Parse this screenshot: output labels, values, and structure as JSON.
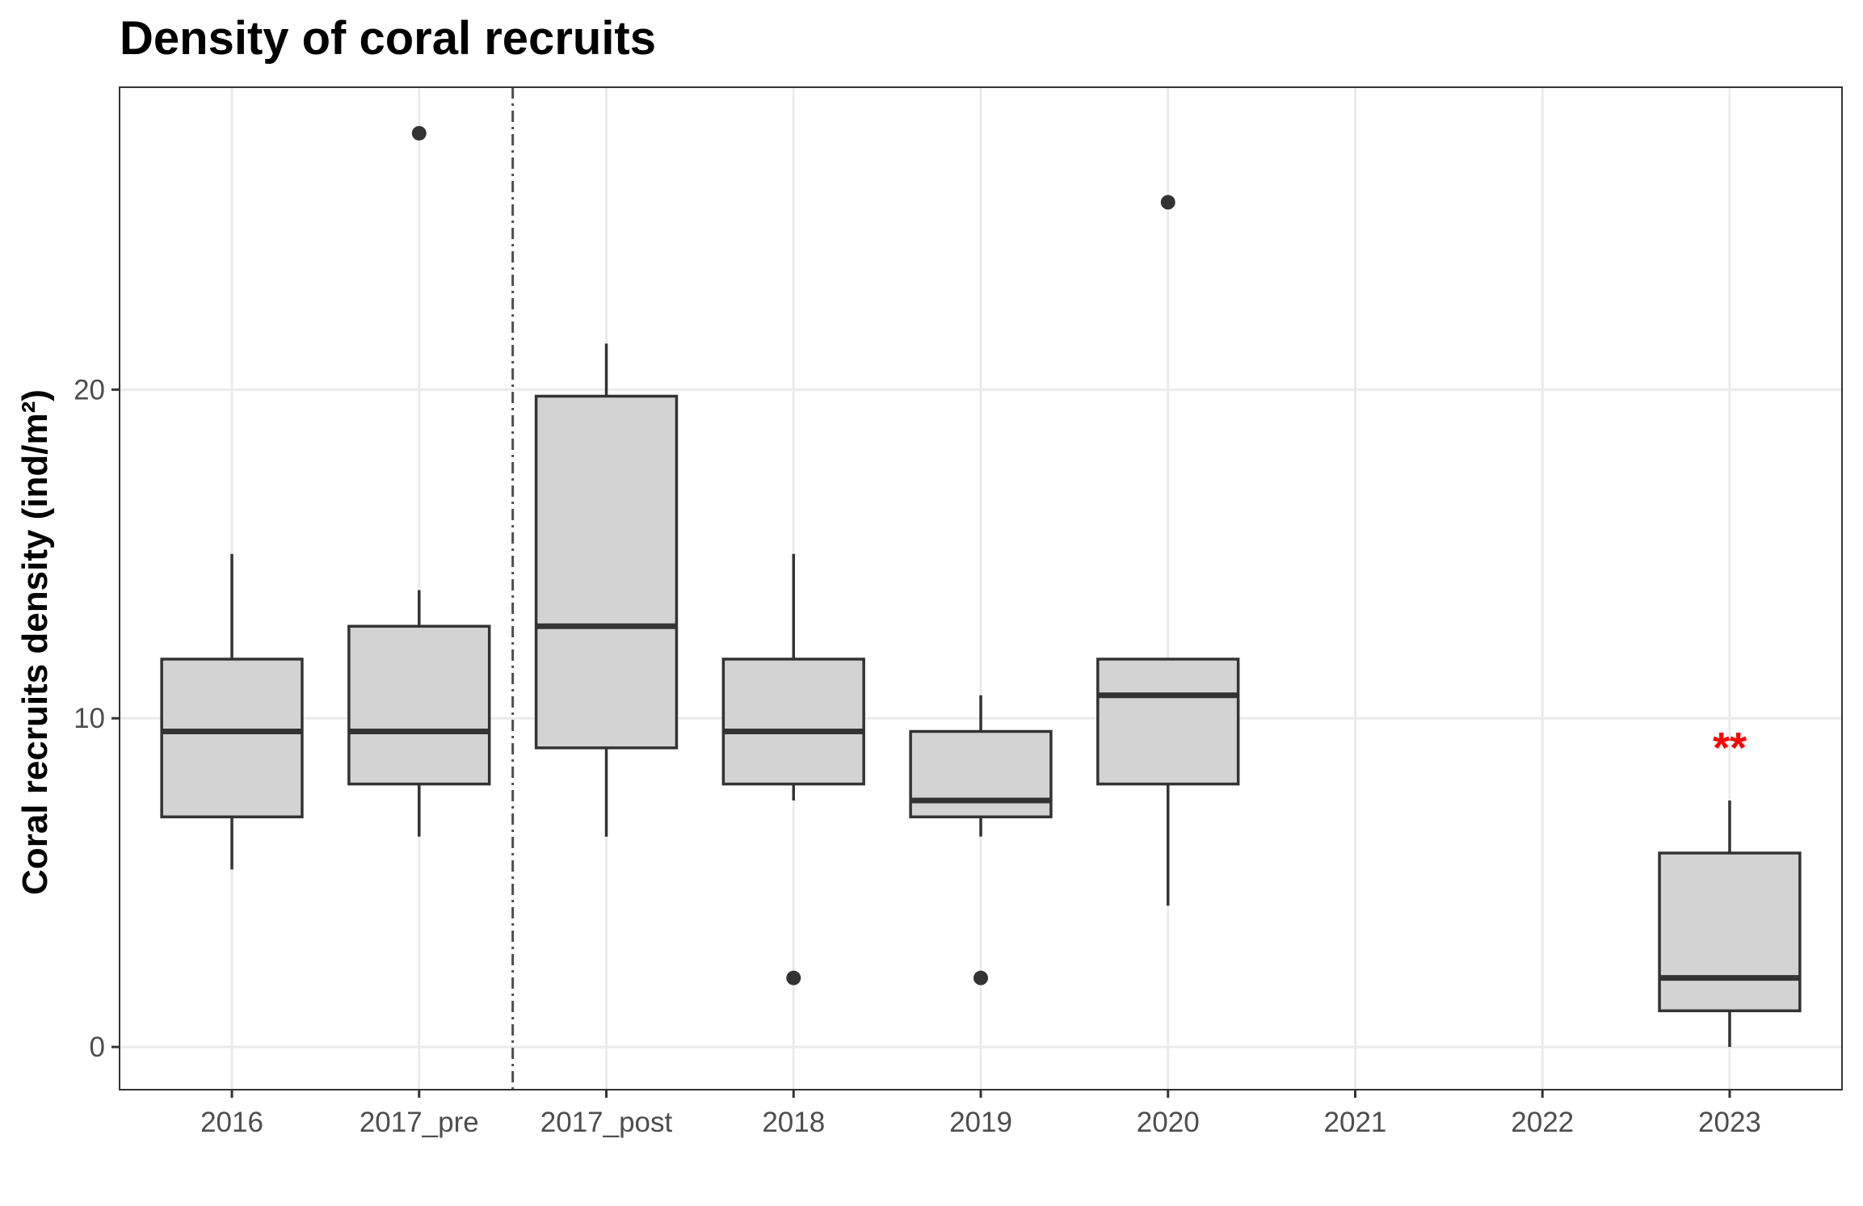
{
  "chart_data": {
    "type": "boxplot",
    "title": "Density of coral recruits",
    "xlabel": "",
    "ylabel": "Coral recruits density (ind/m²)",
    "ylim": [
      -1.3,
      29.2
    ],
    "yticks": [
      0,
      10,
      20
    ],
    "grid": true,
    "categories": [
      "2016",
      "2017_pre",
      "2017_post",
      "2018",
      "2019",
      "2020",
      "2021",
      "2022",
      "2023"
    ],
    "boxes": [
      {
        "category": "2016",
        "lower_whisker": 5.4,
        "q1": 7.0,
        "median": 9.6,
        "q3": 11.8,
        "upper_whisker": 15.0,
        "outliers": []
      },
      {
        "category": "2017_pre",
        "lower_whisker": 6.4,
        "q1": 8.0,
        "median": 9.6,
        "q3": 12.8,
        "upper_whisker": 13.9,
        "outliers": [
          27.8
        ]
      },
      {
        "category": "2017_post",
        "lower_whisker": 6.4,
        "q1": 9.1,
        "median": 12.8,
        "q3": 19.8,
        "upper_whisker": 21.4,
        "outliers": []
      },
      {
        "category": "2018",
        "lower_whisker": 7.5,
        "q1": 8.0,
        "median": 9.6,
        "q3": 11.8,
        "upper_whisker": 15.0,
        "outliers": [
          2.1
        ]
      },
      {
        "category": "2019",
        "lower_whisker": 6.4,
        "q1": 7.0,
        "median": 7.5,
        "q3": 9.6,
        "upper_whisker": 10.7,
        "outliers": [
          2.1
        ]
      },
      {
        "category": "2020",
        "lower_whisker": 4.3,
        "q1": 8.0,
        "median": 10.7,
        "q3": 11.8,
        "upper_whisker": 11.8,
        "outliers": [
          25.7
        ]
      },
      {
        "category": "2023",
        "lower_whisker": 0.0,
        "q1": 1.1,
        "median": 2.1,
        "q3": 5.9,
        "upper_whisker": 7.5,
        "outliers": []
      }
    ],
    "reference_line": {
      "position": "between 2017_pre and 2017_post",
      "style": "dot-dash",
      "color": "#4d4d4d"
    },
    "annotations": [
      {
        "text": "**",
        "category": "2023",
        "y": 9.2,
        "color": "#ff0000"
      }
    ],
    "box_fill": "#d3d3d3",
    "box_stroke": "#333333",
    "grid_color": "#ebebeb",
    "panel_border": "#333333"
  }
}
